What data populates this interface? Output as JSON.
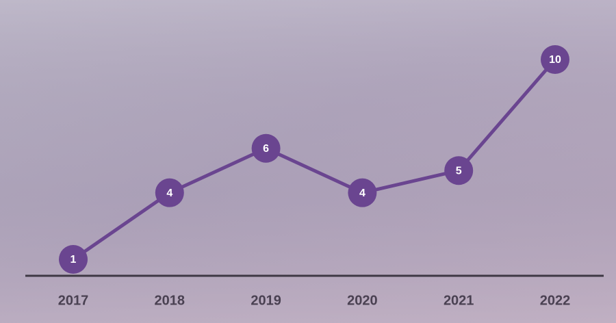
{
  "chart_data": {
    "type": "line",
    "categories": [
      "2017",
      "2018",
      "2019",
      "2020",
      "2021",
      "2022"
    ],
    "values": [
      1,
      4,
      6,
      4,
      5,
      10
    ],
    "color": "#6a4590"
  }
}
